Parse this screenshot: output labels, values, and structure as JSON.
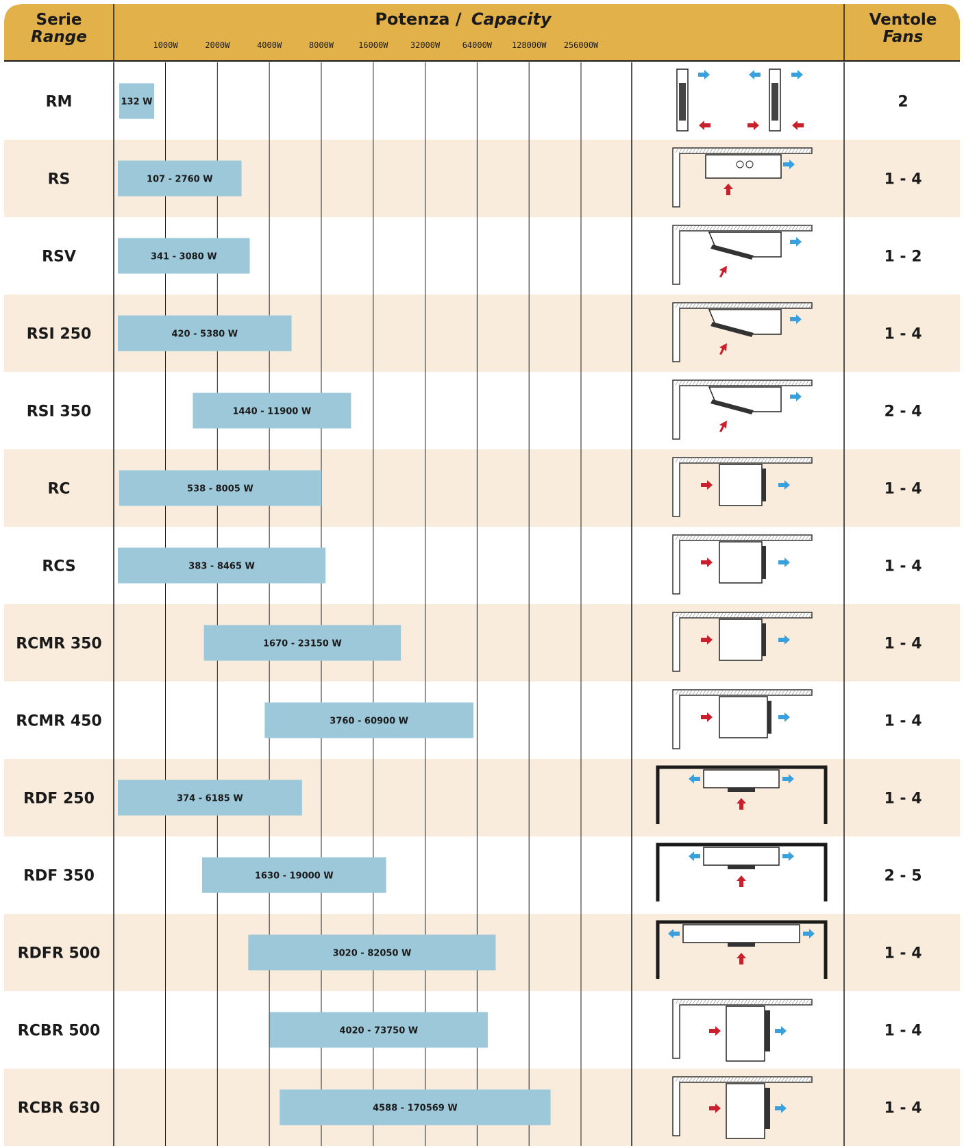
{
  "colors": {
    "header": "#e2b14a",
    "row_alt": "#f9ecdd",
    "bar": "#9dc8d9",
    "grid": "#1a1a1a",
    "arrow_in": "#c8202d",
    "arrow_out": "#3aa0dc"
  },
  "header": {
    "range_title": "Serie",
    "range_subtitle": "Range",
    "capacity_title": "Potenza /",
    "capacity_subtitle": "Capacity",
    "fans_title": "Ventole",
    "fans_subtitle": "Fans"
  },
  "chart_data": {
    "type": "bar",
    "orientation": "horizontal-range",
    "scale": "log2",
    "tick_labels": [
      "1000W",
      "2000W",
      "4000W",
      "8000W",
      "16000W",
      "32000W",
      "64000W",
      "128000W",
      "256000W"
    ],
    "ticks": [
      1000,
      2000,
      4000,
      8000,
      16000,
      32000,
      64000,
      128000,
      256000
    ],
    "grid": true,
    "rows": [
      {
        "range": "RM",
        "min": 132,
        "max": 132,
        "label": "132 W",
        "fans": "2",
        "icon": "tube-unit-icon"
      },
      {
        "range": "RS",
        "min": 107,
        "max": 2760,
        "label": "107 - 2760 W",
        "fans": "1 - 4",
        "icon": "ceiling-unit-icon"
      },
      {
        "range": "RSV",
        "min": 341,
        "max": 3080,
        "label": "341 - 3080 W",
        "fans": "1 - 2",
        "icon": "ceiling-slanted-unit-icon"
      },
      {
        "range": "RSI 250",
        "min": 420,
        "max": 5380,
        "label": "420 - 5380 W",
        "fans": "1 - 4",
        "icon": "ceiling-slanted-unit-icon"
      },
      {
        "range": "RSI 350",
        "min": 1440,
        "max": 11900,
        "label": "1440 - 11900 W",
        "fans": "2 - 4",
        "icon": "ceiling-slanted-unit-icon"
      },
      {
        "range": "RC",
        "min": 538,
        "max": 8005,
        "label": "538 - 8005 W",
        "fans": "1 - 4",
        "icon": "cubic-unit-icon"
      },
      {
        "range": "RCS",
        "min": 383,
        "max": 8465,
        "label": "383 - 8465 W",
        "fans": "1 - 4",
        "icon": "cubic-unit-icon"
      },
      {
        "range": "RCMR 350",
        "min": 1670,
        "max": 23150,
        "label": "1670 - 23150 W",
        "fans": "1 - 4",
        "icon": "cubic-unit-icon"
      },
      {
        "range": "RCMR 450",
        "min": 3760,
        "max": 60900,
        "label": "3760 - 60900 W",
        "fans": "1 - 4",
        "icon": "cubic-unit-icon"
      },
      {
        "range": "RDF 250",
        "min": 374,
        "max": 6185,
        "label": "374 - 6185 W",
        "fans": "1 - 4",
        "icon": "dual-flow-unit-icon"
      },
      {
        "range": "RDF 350",
        "min": 1630,
        "max": 19000,
        "label": "1630 - 19000 W",
        "fans": "2 - 5",
        "icon": "dual-flow-unit-icon"
      },
      {
        "range": "RDFR 500",
        "min": 3020,
        "max": 82050,
        "label": "3020 -  82050 W",
        "fans": "1 - 4",
        "icon": "dual-flow-unit-icon"
      },
      {
        "range": "RCBR 500",
        "min": 4020,
        "max": 73750,
        "label": "4020 - 73750 W",
        "fans": "1 - 4",
        "icon": "cubic-large-unit-icon"
      },
      {
        "range": "RCBR 630",
        "min": 4588,
        "max": 170569,
        "label": "4588 - 170569 W",
        "fans": "1 - 4",
        "icon": "cubic-large-unit-icon"
      }
    ]
  }
}
